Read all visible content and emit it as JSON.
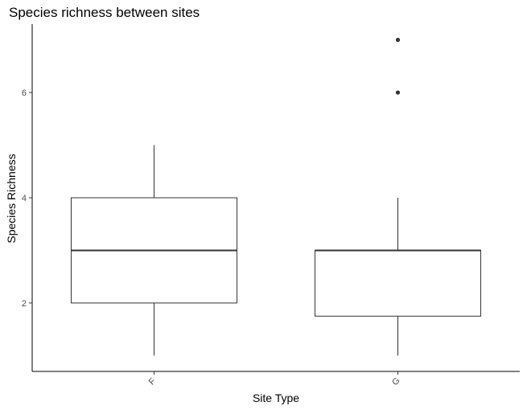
{
  "chart_data": {
    "type": "boxplot",
    "title": "Species richness between sites",
    "xlabel": "Site Type",
    "ylabel": "Species Richness",
    "categories": [
      "F",
      "G"
    ],
    "boxes": [
      {
        "category": "F",
        "whisker_low": 1,
        "q1": 2,
        "median": 3,
        "q3": 4,
        "whisker_high": 5,
        "outliers": []
      },
      {
        "category": "G",
        "whisker_low": 1,
        "q1": 1.75,
        "median": 3,
        "q3": 3,
        "whisker_high": 4,
        "outliers": [
          6,
          7
        ]
      }
    ],
    "y_ticks": [
      2,
      4,
      6
    ],
    "ylim": [
      0.7,
      7.3
    ],
    "grid": false,
    "legend": "none",
    "x_tick_label_rotation": "angled",
    "colors": {
      "box_fill": "#ffffff",
      "box_stroke": "#333333",
      "axis": "#000000",
      "outlier": "#333333",
      "tick_label": "#4d4d4d"
    }
  }
}
